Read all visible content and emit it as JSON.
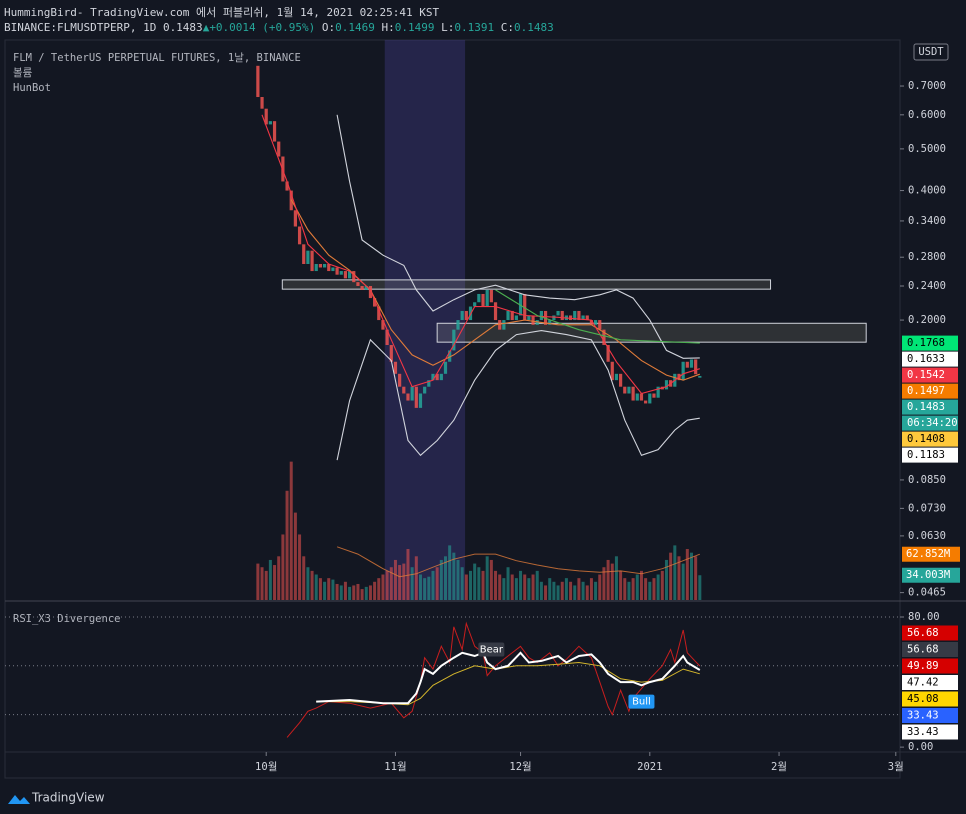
{
  "header": {
    "title": "HummingBird- TradingView.com 에서 퍼블리쉬, 1월 14, 2021 02:25:41 KST",
    "symbol": "BINANCE:FLMUSDTPERP, 1D 0.1483",
    "arrow": "▲",
    "change": "+0.0014 (+0.95%)",
    "ohlc": [
      {
        "key": "O:",
        "value": "0.1469"
      },
      {
        "key": "H:",
        "value": "0.1499"
      },
      {
        "key": "L:",
        "value": "0.1391"
      },
      {
        "key": "C:",
        "value": "0.1483"
      }
    ]
  },
  "chart_data": {
    "type": "candlestick",
    "instrument": "FLM / TetherUS PERPETUAL FUTURES, 1날, BINANCE",
    "volume_title": "볼륨",
    "indicator": "HunBot",
    "currency": "USDT",
    "log": true,
    "up_color": "#26a69a",
    "down_color": "#ef5350",
    "x": [
      -2,
      -1,
      0,
      1,
      2,
      3,
      4,
      5,
      6,
      7,
      8,
      9,
      10,
      11,
      12,
      13,
      14,
      15,
      16,
      17,
      18,
      19,
      20,
      21,
      22,
      23,
      24,
      25,
      26,
      27,
      28,
      29,
      30,
      31,
      32,
      33,
      34,
      35,
      36,
      37,
      38,
      39,
      40,
      41,
      42,
      43,
      44,
      45,
      46,
      47,
      48,
      49,
      50,
      51,
      52,
      53,
      54,
      55,
      56,
      57,
      58,
      59,
      60,
      61,
      62,
      63,
      64,
      65,
      66,
      67,
      68,
      69,
      70,
      71,
      72,
      73,
      74,
      75,
      76,
      77,
      78,
      79,
      80,
      81,
      82,
      83,
      84,
      85,
      86,
      87,
      88,
      89,
      90,
      91,
      92,
      93,
      94,
      95,
      96,
      97,
      98,
      99,
      100,
      101,
      102,
      103,
      104
    ],
    "open": [
      0.78,
      0.66,
      0.62,
      0.57,
      0.58,
      0.52,
      0.48,
      0.42,
      0.4,
      0.36,
      0.33,
      0.3,
      0.27,
      0.29,
      0.26,
      0.27,
      0.265,
      0.27,
      0.26,
      0.265,
      0.255,
      0.26,
      0.25,
      0.26,
      0.245,
      0.24,
      0.235,
      0.24,
      0.225,
      0.215,
      0.2,
      0.19,
      0.175,
      0.16,
      0.15,
      0.14,
      0.135,
      0.13,
      0.14,
      0.125,
      0.135,
      0.14,
      0.145,
      0.15,
      0.145,
      0.15,
      0.16,
      0.17,
      0.19,
      0.2,
      0.21,
      0.2,
      0.215,
      0.22,
      0.23,
      0.215,
      0.235,
      0.22,
      0.2,
      0.19,
      0.2,
      0.21,
      0.2,
      0.205,
      0.23,
      0.2,
      0.205,
      0.195,
      0.2,
      0.21,
      0.195,
      0.2,
      0.205,
      0.21,
      0.2,
      0.205,
      0.2,
      0.21,
      0.2,
      0.205,
      0.2,
      0.195,
      0.2,
      0.19,
      0.175,
      0.16,
      0.145,
      0.15,
      0.14,
      0.135,
      0.14,
      0.13,
      0.135,
      0.13,
      0.128,
      0.135,
      0.132,
      0.14,
      0.138,
      0.145,
      0.14,
      0.15,
      0.145,
      0.16,
      0.155,
      0.162,
      0.1469
    ],
    "close": [
      0.66,
      0.62,
      0.57,
      0.58,
      0.52,
      0.48,
      0.42,
      0.4,
      0.36,
      0.33,
      0.3,
      0.27,
      0.29,
      0.26,
      0.27,
      0.265,
      0.27,
      0.26,
      0.265,
      0.255,
      0.26,
      0.25,
      0.26,
      0.245,
      0.24,
      0.235,
      0.24,
      0.225,
      0.215,
      0.2,
      0.19,
      0.175,
      0.16,
      0.15,
      0.14,
      0.135,
      0.13,
      0.14,
      0.125,
      0.135,
      0.14,
      0.145,
      0.15,
      0.145,
      0.15,
      0.16,
      0.17,
      0.19,
      0.2,
      0.21,
      0.2,
      0.215,
      0.22,
      0.23,
      0.215,
      0.235,
      0.22,
      0.2,
      0.19,
      0.2,
      0.21,
      0.2,
      0.205,
      0.23,
      0.2,
      0.205,
      0.195,
      0.2,
      0.21,
      0.195,
      0.2,
      0.205,
      0.21,
      0.2,
      0.205,
      0.2,
      0.21,
      0.2,
      0.205,
      0.2,
      0.195,
      0.2,
      0.19,
      0.175,
      0.16,
      0.145,
      0.15,
      0.14,
      0.135,
      0.14,
      0.13,
      0.135,
      0.13,
      0.128,
      0.135,
      0.132,
      0.14,
      0.138,
      0.145,
      0.14,
      0.15,
      0.145,
      0.16,
      0.155,
      0.162,
      0.1497,
      0.1483
    ],
    "xlim": [
      -62.65,
      152.01
    ],
    "xticks": [
      {
        "value": 0,
        "label": "10월"
      },
      {
        "value": 31,
        "label": "11월"
      },
      {
        "value": 61,
        "label": "12월"
      },
      {
        "value": 92,
        "label": "2021"
      },
      {
        "value": 123,
        "label": "2월"
      },
      {
        "value": 151,
        "label": "3월"
      }
    ],
    "ylim": [
      0.0447,
      0.858
    ],
    "yticks": [
      {
        "value": 0.7,
        "label": "0.7000"
      },
      {
        "value": 0.6,
        "label": "0.6000"
      },
      {
        "value": 0.5,
        "label": "0.5000"
      },
      {
        "value": 0.4,
        "label": "0.4000"
      },
      {
        "value": 0.34,
        "label": "0.3400"
      },
      {
        "value": 0.28,
        "label": "0.2800"
      },
      {
        "value": 0.24,
        "label": "0.2400"
      },
      {
        "value": 0.2,
        "label": "0.2000"
      },
      {
        "value": 0.085,
        "label": "0.0850"
      },
      {
        "value": 0.073,
        "label": "0.0730"
      },
      {
        "value": 0.063,
        "label": "0.0630"
      },
      {
        "value": 0.0465,
        "label": "0.0465"
      }
    ],
    "highlight_x": [
      28.43,
      47.7
    ],
    "zones": [
      {
        "x": [
          3.86,
          120.96
        ],
        "y": [
          0.236,
          0.248
        ]
      },
      {
        "x": [
          41.0,
          143.9
        ],
        "y": [
          0.1777,
          0.1966
        ]
      }
    ],
    "lines": [
      {
        "color": "#d1d4dc",
        "x": [
          17,
          20,
          23,
          28,
          33,
          36,
          40,
          45,
          50,
          55,
          62,
          68,
          74,
          80,
          84,
          88,
          92,
          96,
          100,
          104
        ],
        "values": [
          0.6,
          0.42,
          0.307,
          0.283,
          0.268,
          0.235,
          0.21,
          0.223,
          0.235,
          0.241,
          0.229,
          0.225,
          0.223,
          0.229,
          0.235,
          0.225,
          0.2,
          0.17,
          0.163,
          0.1633
        ]
      },
      {
        "color": "#d1d4dc",
        "x": [
          17,
          20,
          25,
          30,
          34,
          37,
          41,
          45,
          50,
          55,
          60,
          66,
          72,
          78,
          82,
          86,
          90,
          94,
          98,
          101,
          104
        ],
        "values": [
          0.0945,
          0.13,
          0.18,
          0.161,
          0.105,
          0.097,
          0.105,
          0.117,
          0.145,
          0.17,
          0.185,
          0.189,
          0.185,
          0.18,
          0.153,
          0.117,
          0.097,
          0.1,
          0.111,
          0.117,
          0.1183
        ]
      },
      {
        "color": "#e07b39",
        "x": [
          6,
          10,
          15,
          20,
          25,
          30,
          35,
          40,
          45,
          50,
          55,
          62,
          70,
          78,
          84,
          90,
          96,
          100,
          104
        ],
        "values": [
          0.381,
          0.324,
          0.283,
          0.261,
          0.235,
          0.19,
          0.166,
          0.157,
          0.166,
          0.18,
          0.195,
          0.2,
          0.195,
          0.195,
          0.18,
          0.161,
          0.149,
          0.145,
          0.1497
        ]
      },
      {
        "color": "#f23645",
        "x": [
          -1,
          5,
          10,
          15,
          20,
          25,
          30,
          35,
          40,
          45,
          50,
          55,
          62,
          70,
          78,
          84,
          90,
          96,
          100,
          104
        ],
        "values": [
          0.6,
          0.42,
          0.3,
          0.27,
          0.26,
          0.235,
          0.18,
          0.14,
          0.145,
          0.175,
          0.215,
          0.215,
          0.205,
          0.203,
          0.2,
          0.16,
          0.135,
          0.14,
          0.15,
          0.1542
        ]
      },
      {
        "color": "#4caf50",
        "x": [
          55,
          65,
          75,
          85,
          104
        ],
        "values": [
          0.235,
          0.205,
          0.19,
          0.18,
          0.1768
        ]
      }
    ],
    "price_labels": [
      {
        "value": 0.1768,
        "label": "0.1768",
        "color": "#00e676",
        "text_color": "#000000"
      },
      {
        "value": 0.1633,
        "label": "0.1633",
        "color": "#ffffff",
        "text_color": "#000000"
      },
      {
        "value": 0.1542,
        "label": "0.1542",
        "color": "#f23645",
        "text_color": "#ffffff"
      },
      {
        "value": 0.1497,
        "label": "0.1497",
        "color": "#f57c00",
        "text_color": "#ffffff"
      },
      {
        "value": 0.1483,
        "label": "0.1483",
        "color": "#26a69a",
        "text_color": "#ffffff"
      },
      {
        "label": "06:34:20",
        "color": "#26a69a",
        "text_color": "#ffffff"
      },
      {
        "value": 0.1408,
        "label": "0.1408",
        "color": "#ffc93c",
        "text_color": "#000000"
      },
      {
        "value": 0.1183,
        "label": "0.1183",
        "color": "#ffffff",
        "text_color": "#000000"
      }
    ],
    "volume": {
      "ylim": [
        0,
        758
      ],
      "values": [
        50,
        45,
        40,
        55,
        48,
        60,
        90,
        150,
        190,
        120,
        90,
        60,
        45,
        40,
        35,
        30,
        25,
        30,
        28,
        22,
        20,
        25,
        18,
        20,
        22,
        15,
        18,
        20,
        25,
        30,
        35,
        40,
        45,
        55,
        48,
        50,
        70,
        45,
        60,
        35,
        30,
        32,
        40,
        45,
        55,
        60,
        75,
        65,
        55,
        45,
        35,
        40,
        50,
        45,
        40,
        60,
        55,
        40,
        35,
        30,
        45,
        35,
        30,
        40,
        35,
        30,
        35,
        40,
        25,
        20,
        30,
        25,
        20,
        25,
        30,
        25,
        20,
        30,
        25,
        20,
        30,
        25,
        35,
        45,
        55,
        50,
        60,
        40,
        30,
        25,
        30,
        35,
        40,
        30,
        25,
        30,
        35,
        40,
        55,
        65,
        75,
        60,
        50,
        70,
        65,
        60,
        34.003
      ],
      "line": {
        "color": "#e07b39",
        "x": [
          17,
          22,
          28,
          32,
          36,
          40,
          45,
          50,
          55,
          60,
          65,
          70,
          75,
          80,
          85,
          90,
          95,
          100,
          104
        ],
        "values": [
          73,
          63,
          43,
          32,
          36,
          45,
          56,
          63,
          63,
          54,
          48,
          43,
          40,
          38,
          40,
          36,
          43,
          54,
          62.852
        ]
      },
      "labels": [
        {
          "value": 62.852,
          "label": "62.852M",
          "color": "#f57c00"
        },
        {
          "value": 34.003,
          "label": "34.003M",
          "color": "#26a69a"
        }
      ]
    },
    "rsi": {
      "title": "RSI_X3 Divergence",
      "ylim": [
        -3,
        88
      ],
      "yticks": [
        {
          "value": 80,
          "label": "80.00"
        },
        {
          "value": 0,
          "label": "0.00"
        }
      ],
      "hlines": [
        80,
        50,
        20
      ],
      "series": [
        {
          "color": "#c81e1e",
          "x": [
            5,
            8,
            10,
            12,
            15,
            20,
            25,
            30,
            33,
            35,
            37,
            38,
            40,
            42,
            44,
            45,
            47,
            48,
            50,
            52,
            53,
            55,
            58,
            61,
            63,
            65,
            68,
            70,
            72,
            75,
            78,
            80,
            82,
            83,
            85,
            87,
            88,
            90,
            92,
            95,
            97,
            98,
            100,
            101,
            104
          ],
          "values": [
            6,
            15,
            22,
            24,
            28,
            27,
            24,
            27,
            18,
            22,
            40,
            55,
            48,
            62,
            52,
            74,
            60,
            76,
            62,
            58,
            44,
            50,
            56,
            62,
            55,
            52,
            58,
            50,
            54,
            62,
            55,
            40,
            25,
            20,
            35,
            22,
            30,
            36,
            42,
            50,
            60,
            52,
            72,
            58,
            49.89
          ]
        },
        {
          "color": "#d4b62c",
          "x": [
            12,
            20,
            28,
            34,
            37,
            40,
            45,
            50,
            55,
            60,
            65,
            70,
            75,
            80,
            85,
            90,
            95,
            100,
            104
          ],
          "values": [
            28,
            28,
            27,
            26,
            30,
            38,
            45,
            50,
            48,
            50,
            50,
            51,
            52,
            50,
            42,
            40,
            41,
            48,
            45.08
          ]
        },
        {
          "color": "#ffffff",
          "x": [
            12,
            20,
            28,
            34,
            36,
            37,
            38,
            40,
            42,
            45,
            47,
            50,
            52,
            53,
            55,
            58,
            61,
            63,
            66,
            70,
            72,
            75,
            78,
            80,
            82,
            85,
            88,
            90,
            92,
            95,
            98,
            100,
            101,
            104
          ],
          "values": [
            28,
            29,
            27,
            27,
            33,
            40,
            48,
            45,
            50,
            55,
            58,
            56,
            58,
            52,
            48,
            50,
            58,
            52,
            53,
            56,
            52,
            56,
            57,
            52,
            45,
            40,
            40,
            38,
            40,
            42,
            50,
            56,
            52,
            47.42
          ]
        }
      ],
      "labels": [
        {
          "label": "56.68",
          "color": "#d50000",
          "text_color": "#ffffff"
        },
        {
          "label": "56.68",
          "color": "#363a45",
          "text_color": "#ffffff"
        },
        {
          "label": "49.89",
          "color": "#d50000",
          "text_color": "#ffffff"
        },
        {
          "label": "47.42",
          "color": "#ffffff",
          "text_color": "#000000"
        },
        {
          "label": "45.08",
          "color": "#ffd600",
          "text_color": "#000000"
        },
        {
          "label": "33.43",
          "color": "#2962ff",
          "text_color": "#ffffff"
        },
        {
          "label": "33.43",
          "color": "#ffffff",
          "text_color": "#000000"
        }
      ],
      "annotations": [
        {
          "text": "Bear",
          "x": 54,
          "y": 60,
          "color": "#363a45"
        },
        {
          "text": "Bull",
          "x": 90,
          "y": 28,
          "color": "#2196f3"
        }
      ]
    }
  },
  "footer": {
    "logo": "TradingView"
  }
}
